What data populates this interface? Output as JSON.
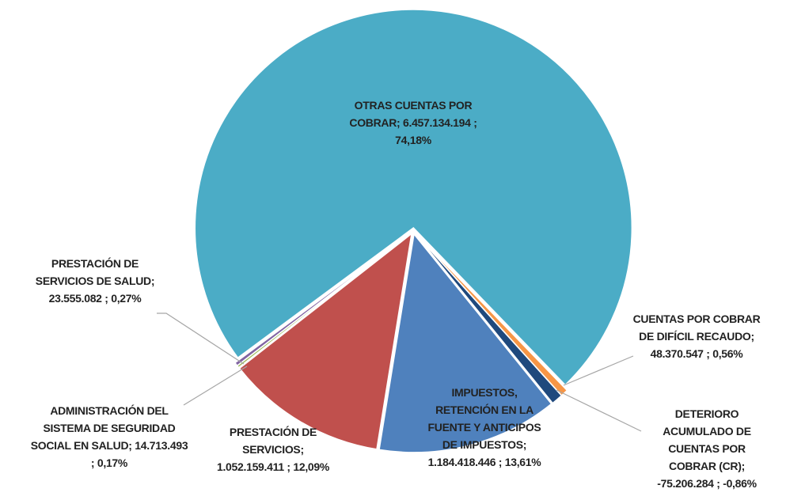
{
  "chart_data": {
    "type": "pie",
    "categories": [
      "OTRAS CUENTAS POR COBRAR;",
      "CUENTAS POR COBRAR DE DIFÍCIL RECAUDO;",
      "DETERIORO ACUMULADO DE CUENTAS POR COBRAR (CR);",
      "IMPUESTOS, RETENCIÓN EN LA FUENTE Y ANTICIPOS DE IMPUESTOS;",
      "PRESTACIÓN DE SERVICIOS;",
      "ADMINISTRACIÓN DEL SISTEMA DE SEGURIDAD SOCIAL EN SALUD;",
      "PRESTACIÓN DE SERVICIOS DE SALUD;"
    ],
    "values": [
      6457134194,
      48370547,
      -75206284,
      1184418446,
      1052159411,
      14713493,
      23555082
    ],
    "value_labels": [
      "6.457.134.194 ; 74,18%",
      "48.370.547 ; 0,56%",
      "-75.206.284 ; -0,86%",
      "1.184.418.446 ; 13,61%",
      "1.052.159.411 ; 12,09%",
      "14.713.493 ; 0,17%",
      "23.555.082 ; 0,27%"
    ],
    "colors": [
      "#4bacc6",
      "#f79646",
      "#1f497d",
      "#4f81bd",
      "#c0504d",
      "#9bbb59",
      "#8064a2"
    ]
  }
}
